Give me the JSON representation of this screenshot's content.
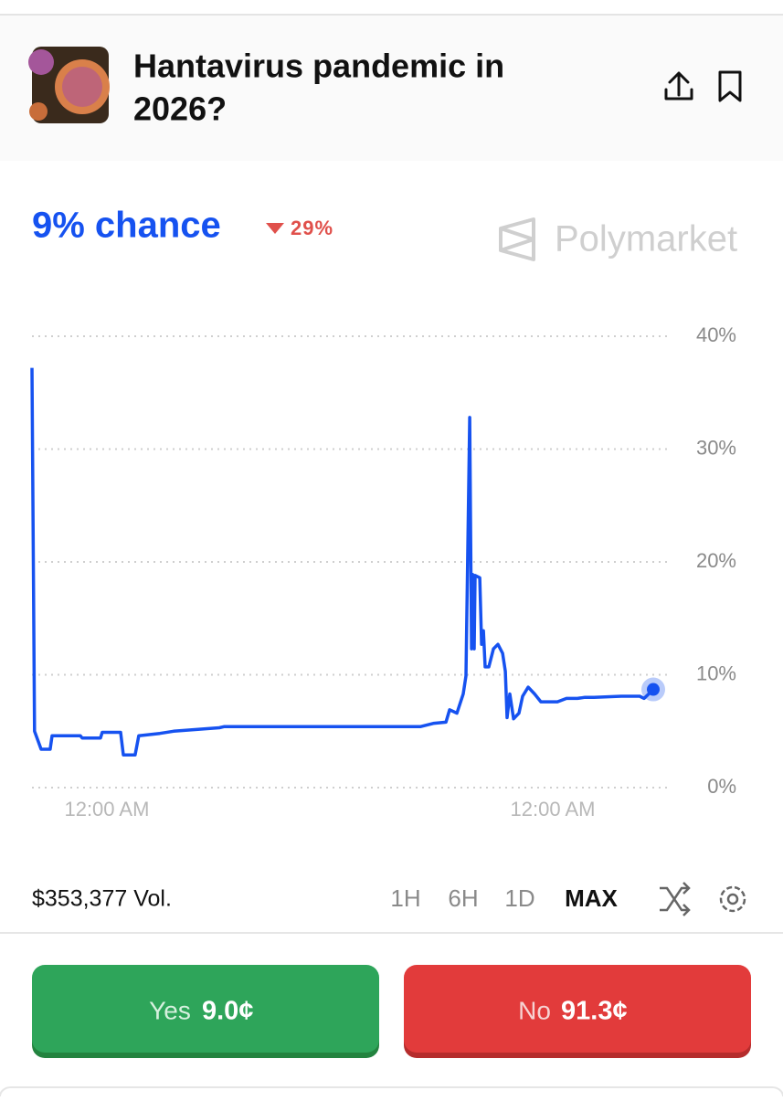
{
  "header": {
    "title": "Hantavirus pandemic in 2026?"
  },
  "summary": {
    "chance": "9% chance",
    "change": "29%",
    "brand": "Polymarket"
  },
  "chart_data": {
    "type": "line",
    "color": "#1652f0",
    "x": [
      -4.03,
      -3.89,
      -3.54,
      -3.05,
      -2.95,
      -1.43,
      -1.33,
      -0.34,
      -0.25,
      0.74,
      0.89,
      1.52,
      1.72,
      2.85,
      3.59,
      6.05,
      6.3,
      16.87,
      17.61,
      18.25,
      18.45,
      18.84,
      19.18,
      19.33,
      19.53,
      19.63,
      19.68,
      19.77,
      19.82,
      20.07,
      20.17,
      20.27,
      20.36,
      20.56,
      20.81,
      21.05,
      21.3,
      21.45,
      21.54,
      21.69,
      21.89,
      22.18,
      22.38,
      22.68,
      23.02,
      23.36,
      24.25,
      24.74,
      25.33,
      25.73,
      26.22,
      27.69,
      28.68,
      28.92,
      29.41
    ],
    "values": [
      37.2,
      5.0,
      3.4,
      3.4,
      4.6,
      4.6,
      4.4,
      4.4,
      4.9,
      4.9,
      2.9,
      2.9,
      4.6,
      4.8,
      5.0,
      5.3,
      5.4,
      5.4,
      5.7,
      5.8,
      6.9,
      6.6,
      8.3,
      9.9,
      32.8,
      12.3,
      18.9,
      12.3,
      18.8,
      18.6,
      12.7,
      13.9,
      10.7,
      10.7,
      12.3,
      12.7,
      11.9,
      10.3,
      6.2,
      8.3,
      6.1,
      6.6,
      8.1,
      8.9,
      8.3,
      7.6,
      7.6,
      7.9,
      7.9,
      8.0,
      8.0,
      8.1,
      8.1,
      7.9,
      8.7
    ],
    "xlim": [
      -4.03,
      29.41
    ],
    "xticks": [
      {
        "value": 0,
        "label": "12:00 AM"
      },
      {
        "value": 24,
        "label": "12:00 AM"
      }
    ],
    "ylim": [
      0,
      40
    ],
    "yticks": [
      {
        "value": 0,
        "label": "0%"
      },
      {
        "value": 10,
        "label": "10%"
      },
      {
        "value": 20,
        "label": "20%"
      },
      {
        "value": 30,
        "label": "30%"
      },
      {
        "value": 40,
        "label": "40%"
      }
    ],
    "grid": true
  },
  "footer": {
    "volume": "$353,377 Vol.",
    "ranges": [
      "1H",
      "6H",
      "1D",
      "MAX"
    ],
    "selected_range": "MAX",
    "yes": {
      "label": "Yes",
      "price": "9.0¢"
    },
    "no": {
      "label": "No",
      "price": "91.3¢"
    }
  }
}
